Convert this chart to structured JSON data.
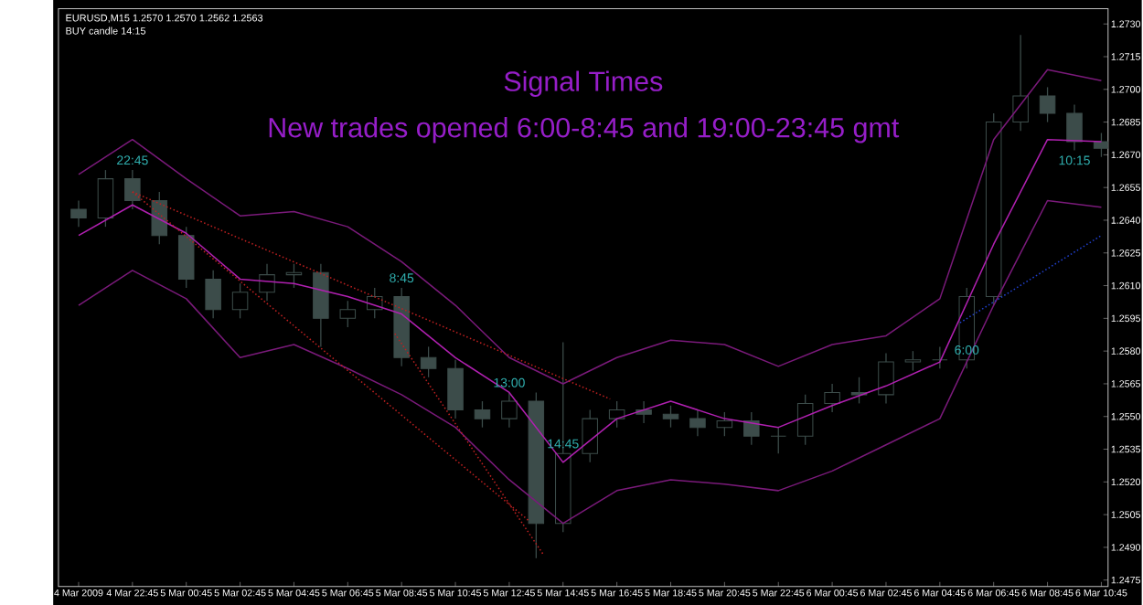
{
  "chart_data": {
    "type": "candlestick",
    "title": "Signal Times",
    "subtitle": "New trades opened 6:00-8:45 and 19:00-23:45 gmt",
    "annotations": [
      "EURUSD,M15 1.2570 1.2570 1.2562 1.2563",
      "BUY candle 14:15",
      {
        "text": "22:45",
        "x": "2009-03-04T22:45",
        "y": 1.2663
      },
      {
        "text": "8:45",
        "x": "2009-03-05T08:45",
        "y": 1.2609
      },
      {
        "text": "13:00",
        "x": "2009-03-05T12:45",
        "y": 1.2561
      },
      {
        "text": "14:45",
        "x": "2009-03-05T14:45",
        "y": 1.2533
      },
      {
        "text": "6:00",
        "x": "2009-03-06T05:45",
        "y": 1.2576
      },
      {
        "text": "10:15",
        "x": "2009-03-06T09:45",
        "y": 1.2672
      }
    ],
    "color": "#3c4c4a",
    "x": [
      "2009-03-04T20:45",
      "2009-03-04T21:45",
      "2009-03-04T22:45",
      "2009-03-04T23:45",
      "2009-03-05T00:45",
      "2009-03-05T01:45",
      "2009-03-05T02:45",
      "2009-03-05T03:45",
      "2009-03-05T04:45",
      "2009-03-05T05:45",
      "2009-03-05T06:45",
      "2009-03-05T07:45",
      "2009-03-05T08:45",
      "2009-03-05T09:45",
      "2009-03-05T10:45",
      "2009-03-05T11:45",
      "2009-03-05T12:45",
      "2009-03-05T13:45",
      "2009-03-05T14:45",
      "2009-03-05T15:45",
      "2009-03-05T16:45",
      "2009-03-05T17:45",
      "2009-03-05T18:45",
      "2009-03-05T19:45",
      "2009-03-05T20:45",
      "2009-03-05T21:45",
      "2009-03-05T22:45",
      "2009-03-05T23:45",
      "2009-03-06T00:45",
      "2009-03-06T01:45",
      "2009-03-06T02:45",
      "2009-03-06T03:45",
      "2009-03-06T04:45",
      "2009-03-06T05:45",
      "2009-03-06T06:45",
      "2009-03-06T07:45",
      "2009-03-06T08:45",
      "2009-03-06T09:45",
      "2009-03-06T10:45"
    ],
    "ohlc": [
      [
        1.2645,
        1.2649,
        1.2637,
        1.2641
      ],
      [
        1.2641,
        1.2663,
        1.2637,
        1.2659
      ],
      [
        1.2659,
        1.2663,
        1.2645,
        1.2649
      ],
      [
        1.2649,
        1.2653,
        1.2629,
        1.2633
      ],
      [
        1.2633,
        1.2637,
        1.2609,
        1.2613
      ],
      [
        1.2613,
        1.2617,
        1.2595,
        1.2599
      ],
      [
        1.2599,
        1.2611,
        1.2595,
        1.2607
      ],
      [
        1.2607,
        1.262,
        1.2603,
        1.2615
      ],
      [
        1.2615,
        1.262,
        1.2609,
        1.2616
      ],
      [
        1.2616,
        1.262,
        1.2582,
        1.2595
      ],
      [
        1.2595,
        1.2603,
        1.2591,
        1.2599
      ],
      [
        1.2599,
        1.2609,
        1.2595,
        1.2605
      ],
      [
        1.2605,
        1.2609,
        1.2573,
        1.2577
      ],
      [
        1.2577,
        1.2582,
        1.2568,
        1.2572
      ],
      [
        1.2572,
        1.2576,
        1.2549,
        1.2553
      ],
      [
        1.2553,
        1.2557,
        1.2545,
        1.2549
      ],
      [
        1.2549,
        1.2561,
        1.2545,
        1.2557
      ],
      [
        1.2557,
        1.2561,
        1.2485,
        1.2501
      ],
      [
        1.2501,
        1.2584,
        1.2497,
        1.2533
      ],
      [
        1.2533,
        1.2553,
        1.2529,
        1.2549
      ],
      [
        1.2549,
        1.2557,
        1.2545,
        1.2553
      ],
      [
        1.2553,
        1.2557,
        1.2547,
        1.2551
      ],
      [
        1.2551,
        1.2555,
        1.2545,
        1.2549
      ],
      [
        1.2549,
        1.2553,
        1.2541,
        1.2545
      ],
      [
        1.2545,
        1.2552,
        1.2541,
        1.2548
      ],
      [
        1.2548,
        1.2552,
        1.2537,
        1.2541
      ],
      [
        1.2541,
        1.2545,
        1.2533,
        1.2541
      ],
      [
        1.2541,
        1.256,
        1.2537,
        1.2556
      ],
      [
        1.2556,
        1.2565,
        1.2552,
        1.2561
      ],
      [
        1.2561,
        1.2568,
        1.2556,
        1.256
      ],
      [
        1.256,
        1.2579,
        1.2556,
        1.2575
      ],
      [
        1.2575,
        1.258,
        1.2571,
        1.2576
      ],
      [
        1.2576,
        1.2582,
        1.2572,
        1.2576
      ],
      [
        1.2576,
        1.2609,
        1.2572,
        1.2605
      ],
      [
        1.2605,
        1.2689,
        1.2601,
        1.2685
      ],
      [
        1.2685,
        1.2725,
        1.2681,
        1.2697
      ],
      [
        1.2697,
        1.2701,
        1.2685,
        1.2689
      ],
      [
        1.2689,
        1.2693,
        1.2672,
        1.2676
      ],
      [
        1.2676,
        1.268,
        1.2669,
        1.2673
      ]
    ],
    "series": [
      {
        "type": "line",
        "color": "#7a1a7a",
        "x": [
          "2009-03-04T20:45",
          "2009-03-04T22:45",
          "2009-03-05T00:45",
          "2009-03-05T02:45",
          "2009-03-05T04:45",
          "2009-03-05T06:45",
          "2009-03-05T08:45",
          "2009-03-05T10:45",
          "2009-03-05T12:45",
          "2009-03-05T14:45",
          "2009-03-05T16:45",
          "2009-03-05T18:45",
          "2009-03-05T20:45",
          "2009-03-05T22:45",
          "2009-03-06T00:45",
          "2009-03-06T02:45",
          "2009-03-06T04:45",
          "2009-03-06T06:45",
          "2009-03-06T08:45",
          "2009-03-06T10:45"
        ],
        "values": [
          1.2661,
          1.2677,
          1.2659,
          1.2642,
          1.2644,
          1.2637,
          1.2621,
          1.2601,
          1.2577,
          1.2565,
          1.2577,
          1.2585,
          1.2583,
          1.2573,
          1.2583,
          1.2587,
          1.2604,
          1.2677,
          1.2709,
          1.2704
        ]
      },
      {
        "type": "line",
        "color": "#b020b0",
        "x": [
          "2009-03-04T20:45",
          "2009-03-04T22:45",
          "2009-03-05T00:45",
          "2009-03-05T02:45",
          "2009-03-05T04:45",
          "2009-03-05T06:45",
          "2009-03-05T08:45",
          "2009-03-05T10:45",
          "2009-03-05T12:45",
          "2009-03-05T14:45",
          "2009-03-05T16:45",
          "2009-03-05T18:45",
          "2009-03-05T20:45",
          "2009-03-05T22:45",
          "2009-03-06T00:45",
          "2009-03-06T02:45",
          "2009-03-06T04:45",
          "2009-03-06T06:45",
          "2009-03-06T08:45",
          "2009-03-06T10:45"
        ],
        "values": [
          1.2633,
          1.2647,
          1.2634,
          1.2613,
          1.2611,
          1.2605,
          1.2597,
          1.2577,
          1.2561,
          1.2529,
          1.2549,
          1.2557,
          1.2549,
          1.2545,
          1.2555,
          1.2564,
          1.2575,
          1.2629,
          1.2677,
          1.2676
        ]
      },
      {
        "type": "line",
        "color": "#7a1a7a",
        "x": [
          "2009-03-04T20:45",
          "2009-03-04T22:45",
          "2009-03-05T00:45",
          "2009-03-05T02:45",
          "2009-03-05T04:45",
          "2009-03-05T06:45",
          "2009-03-05T08:45",
          "2009-03-05T10:45",
          "2009-03-05T12:45",
          "2009-03-05T14:45",
          "2009-03-05T16:45",
          "2009-03-05T18:45",
          "2009-03-05T20:45",
          "2009-03-05T22:45",
          "2009-03-06T00:45",
          "2009-03-06T02:45",
          "2009-03-06T04:45",
          "2009-03-06T06:45",
          "2009-03-06T08:45",
          "2009-03-06T10:45"
        ],
        "values": [
          1.2601,
          1.2617,
          1.2604,
          1.2577,
          1.2583,
          1.2572,
          1.256,
          1.2545,
          1.2521,
          1.2501,
          1.2516,
          1.2521,
          1.2519,
          1.2516,
          1.2525,
          1.2537,
          1.2549,
          1.2601,
          1.2649,
          1.2646
        ]
      },
      {
        "type": "line",
        "color": "#c02020",
        "line_style": "dotted",
        "x": [
          "2009-03-04T22:45",
          "2009-03-05T16:30"
        ],
        "values": [
          1.2653,
          1.2558
        ]
      },
      {
        "type": "line",
        "color": "#c02020",
        "line_style": "dotted",
        "x": [
          "2009-03-04T22:45",
          "2009-03-05T13:30"
        ],
        "values": [
          1.2653,
          1.2502
        ]
      },
      {
        "type": "line",
        "color": "#c02020",
        "line_style": "dotted",
        "x": [
          "2009-03-05T08:30",
          "2009-03-05T14:00"
        ],
        "values": [
          1.2588,
          1.2487
        ]
      },
      {
        "type": "line",
        "color": "#2040d0",
        "line_style": "dotted",
        "x": [
          "2009-03-06T05:30",
          "2009-03-06T10:45"
        ],
        "values": [
          1.2593,
          1.2633
        ]
      }
    ],
    "xlim": [
      "2009-03-04T20:00",
      "2009-03-06T11:00"
    ],
    "ylim": [
      1.2472,
      1.2737
    ],
    "xticks": [
      {
        "value": "2009-03-04T20:45",
        "label": "4 Mar 2009"
      },
      {
        "value": "2009-03-04T22:45",
        "label": "4 Mar 22:45"
      },
      {
        "value": "2009-03-05T00:45",
        "label": "5 Mar 00:45"
      },
      {
        "value": "2009-03-05T02:45",
        "label": "5 Mar 02:45"
      },
      {
        "value": "2009-03-05T04:45",
        "label": "5 Mar 04:45"
      },
      {
        "value": "2009-03-05T06:45",
        "label": "5 Mar 06:45"
      },
      {
        "value": "2009-03-05T08:45",
        "label": "5 Mar 08:45"
      },
      {
        "value": "2009-03-05T10:45",
        "label": "5 Mar 10:45"
      },
      {
        "value": "2009-03-05T12:45",
        "label": "5 Mar 12:45"
      },
      {
        "value": "2009-03-05T14:45",
        "label": "5 Mar 14:45"
      },
      {
        "value": "2009-03-05T16:45",
        "label": "5 Mar 16:45"
      },
      {
        "value": "2009-03-05T18:45",
        "label": "5 Mar 18:45"
      },
      {
        "value": "2009-03-05T20:45",
        "label": "5 Mar 20:45"
      },
      {
        "value": "2009-03-05T22:45",
        "label": "5 Mar 22:45"
      },
      {
        "value": "2009-03-06T00:45",
        "label": "6 Mar 00:45"
      },
      {
        "value": "2009-03-06T02:45",
        "label": "6 Mar 02:45"
      },
      {
        "value": "2009-03-06T04:45",
        "label": "6 Mar 04:45"
      },
      {
        "value": "2009-03-06T06:45",
        "label": "6 Mar 06:45"
      },
      {
        "value": "2009-03-06T08:45",
        "label": "6 Mar 08:45"
      },
      {
        "value": "2009-03-06T10:45",
        "label": "6 Mar 10:45"
      }
    ],
    "yticks": [
      {
        "value": 1.2475,
        "label": "1.2475"
      },
      {
        "value": 1.249,
        "label": "1.2490"
      },
      {
        "value": 1.2505,
        "label": "1.2505"
      },
      {
        "value": 1.252,
        "label": "1.2520"
      },
      {
        "value": 1.2535,
        "label": "1.2535"
      },
      {
        "value": 1.255,
        "label": "1.2550"
      },
      {
        "value": 1.2565,
        "label": "1.2565"
      },
      {
        "value": 1.258,
        "label": "1.2580"
      },
      {
        "value": 1.2595,
        "label": "1.2595"
      },
      {
        "value": 1.261,
        "label": "1.2610"
      },
      {
        "value": 1.2625,
        "label": "1.2625"
      },
      {
        "value": 1.264,
        "label": "1.2640"
      },
      {
        "value": 1.2655,
        "label": "1.2655"
      },
      {
        "value": 1.267,
        "label": "1.2670"
      },
      {
        "value": 1.2685,
        "label": "1.2685"
      },
      {
        "value": 1.27,
        "label": "1.2700"
      },
      {
        "value": 1.2715,
        "label": "1.2715"
      },
      {
        "value": 1.273,
        "label": "1.2730"
      }
    ]
  }
}
